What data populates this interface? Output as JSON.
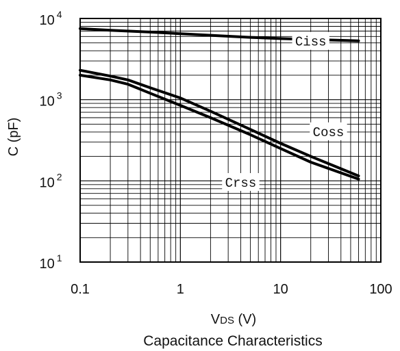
{
  "chart_data": {
    "type": "line",
    "title": "Capacitance Characteristics",
    "xlabel": "VDS (V)",
    "xlabel_main": "V",
    "xlabel_sub": "DS",
    "xlabel_unit": " (V)",
    "ylabel": "C (pF)",
    "x_scale": "log",
    "y_scale": "log",
    "xlim": [
      0.1,
      100
    ],
    "ylim": [
      10,
      10000
    ],
    "grid": true,
    "x_ticks": [
      {
        "value": 0.1,
        "label": "0.1"
      },
      {
        "value": 1,
        "label": "1"
      },
      {
        "value": 10,
        "label": "10"
      },
      {
        "value": 100,
        "label": "100"
      }
    ],
    "y_ticks": [
      {
        "value": 10,
        "base": "10",
        "exp": "1"
      },
      {
        "value": 100,
        "base": "10",
        "exp": "2"
      },
      {
        "value": 1000,
        "base": "10",
        "exp": "3"
      },
      {
        "value": 10000,
        "base": "10",
        "exp": "4"
      }
    ],
    "series": [
      {
        "name": "Ciss",
        "label_x": 20,
        "label_y": 5200,
        "x": [
          0.1,
          0.2,
          0.5,
          1,
          2,
          5,
          10,
          20,
          60
        ],
        "y": [
          7500,
          7150,
          6800,
          6500,
          6200,
          5850,
          5650,
          5500,
          5300
        ]
      },
      {
        "name": "Coss",
        "label_x": 30,
        "label_y": 400,
        "x": [
          0.1,
          0.2,
          0.3,
          0.5,
          1,
          2,
          5,
          10,
          20,
          60
        ],
        "y": [
          2300,
          1950,
          1750,
          1400,
          1050,
          720,
          430,
          290,
          200,
          115
        ]
      },
      {
        "name": "Crss",
        "label_x": 4,
        "label_y": 95,
        "x": [
          0.1,
          0.2,
          0.3,
          0.5,
          1,
          2,
          5,
          10,
          20,
          60
        ],
        "y": [
          2000,
          1750,
          1550,
          1200,
          850,
          600,
          370,
          250,
          170,
          105
        ]
      }
    ]
  }
}
